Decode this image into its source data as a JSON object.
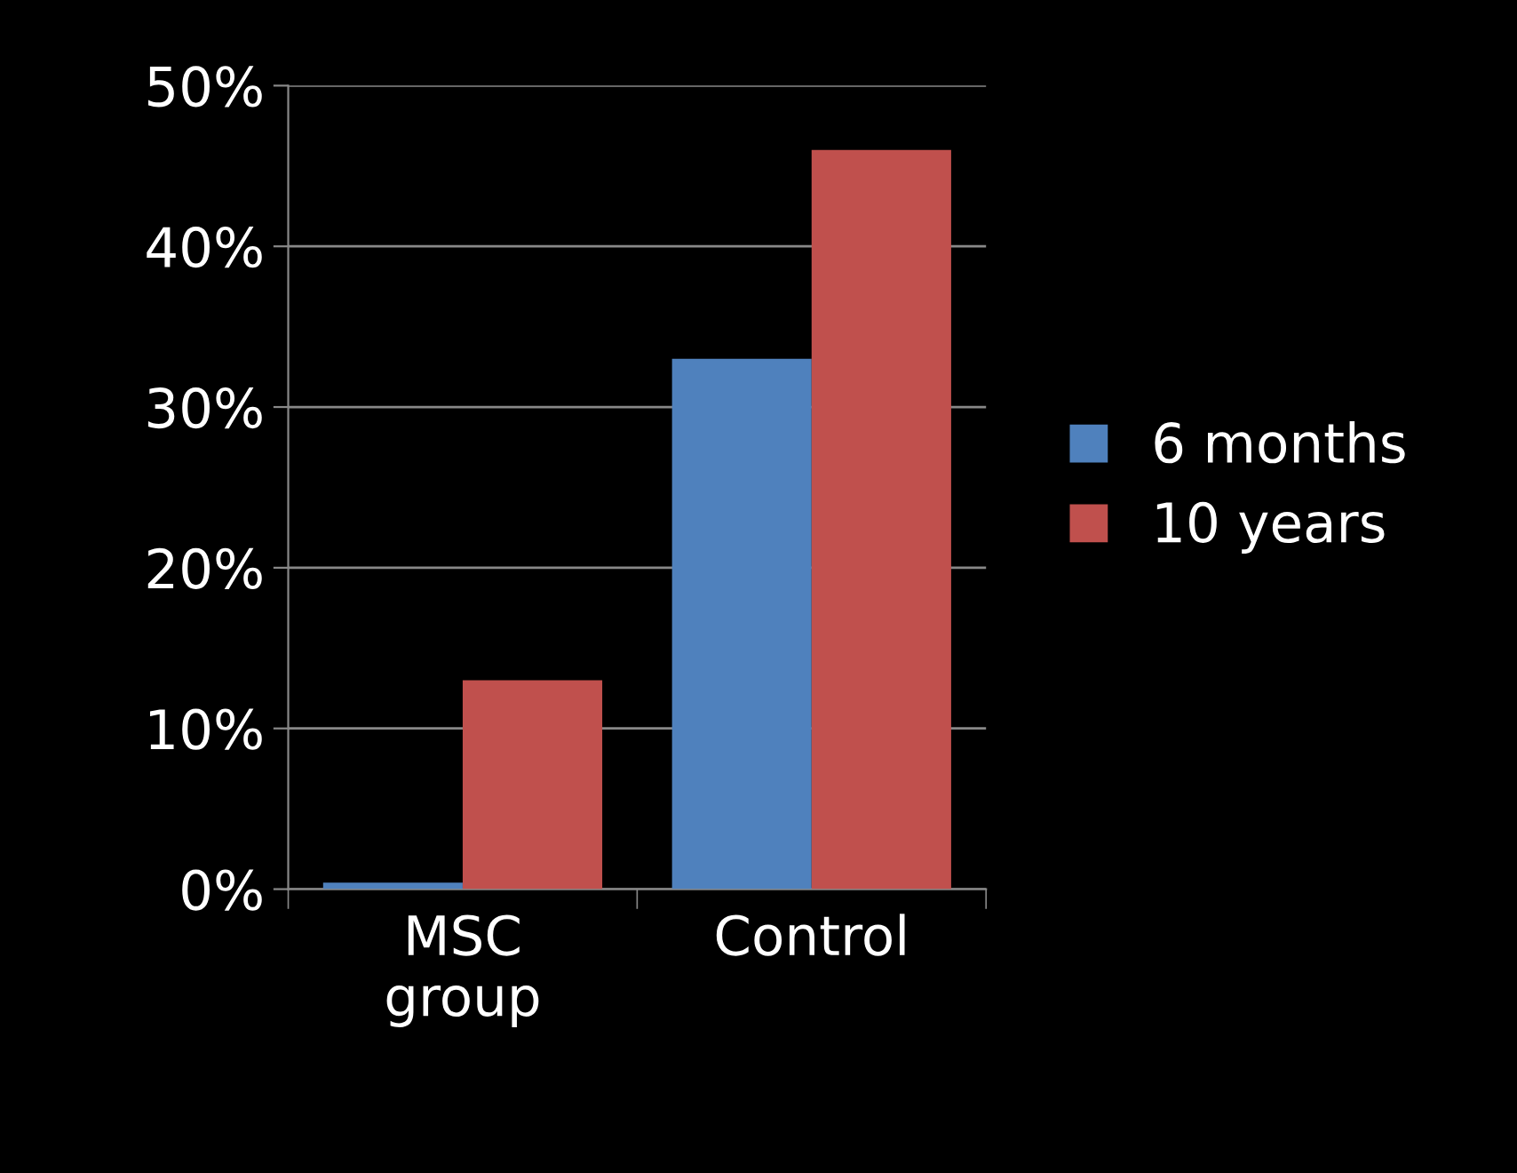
{
  "chart_data": {
    "type": "bar",
    "categories": [
      "MSC\ngroup",
      "Control"
    ],
    "series": [
      {
        "name": "6 months",
        "color": "#4f81bd",
        "values": [
          0.4,
          33
        ]
      },
      {
        "name": "10 years",
        "color": "#c0504d",
        "values": [
          13,
          46
        ]
      }
    ],
    "ylim": [
      0,
      50
    ],
    "yticks": [
      {
        "value": 0,
        "label": "0%"
      },
      {
        "value": 10,
        "label": "10%"
      },
      {
        "value": 20,
        "label": "20%"
      },
      {
        "value": 30,
        "label": "30%"
      },
      {
        "value": 40,
        "label": "40%"
      },
      {
        "value": 50,
        "label": "50%"
      }
    ],
    "grid": "y",
    "legend": "right"
  }
}
